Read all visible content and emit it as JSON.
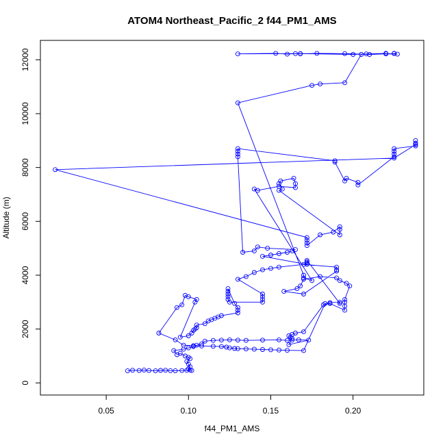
{
  "chart_data": {
    "type": "scatter",
    "title": "ATOM4 Northeast_Pacific_2 f44_PM1_AMS",
    "xlabel": "f44_PM1_AMS",
    "ylabel": "Altitude (m)",
    "xlim": [
      0.01,
      0.243
    ],
    "ylim": [
      -450,
      12720
    ],
    "x_ticks": [
      0.05,
      0.1,
      0.15,
      0.2
    ],
    "x_tick_labels": [
      "0.05",
      "0.10",
      "0.15",
      "0.20"
    ],
    "y_ticks": [
      0,
      2000,
      4000,
      6000,
      8000,
      10000,
      12000
    ],
    "y_tick_labels": [
      "0",
      "2000",
      "4000",
      "6000",
      "8000",
      "10000",
      "12000"
    ],
    "grid": false,
    "series": [
      {
        "mode": "lines+markers",
        "marker": "open-circle",
        "color": "#0000ff",
        "x": [
          0.063,
          0.066,
          0.07,
          0.073,
          0.076,
          0.08,
          0.083,
          0.086,
          0.089,
          0.092,
          0.096,
          0.099,
          0.101,
          0.102,
          0.1,
          0.101,
          0.1,
          0.099,
          0.101,
          0.1,
          0.098,
          0.095,
          0.093,
          0.091,
          0.097,
          0.1,
          0.103,
          0.105,
          0.108,
          0.11,
          0.115,
          0.12,
          0.125,
          0.13,
          0.135,
          0.145,
          0.155,
          0.16,
          0.163,
          0.167,
          0.173,
          0.161,
          0.163,
          0.162,
          0.161,
          0.163,
          0.165,
          0.17,
          0.182,
          0.186,
          0.195,
          0.195,
          0.195,
          0.195,
          0.198,
          0.196,
          0.192,
          0.19,
          0.18,
          0.17,
          0.168,
          0.166,
          0.158,
          0.17,
          0.19,
          0.19,
          0.19,
          0.17,
          0.155,
          0.15,
          0.145,
          0.14,
          0.135,
          0.13,
          0.145,
          0.145,
          0.145,
          0.145,
          0.125,
          0.124,
          0.124,
          0.124,
          0.124,
          0.124,
          0.128,
          0.13,
          0.13,
          0.13,
          0.12,
          0.118,
          0.116,
          0.114,
          0.112,
          0.11,
          0.105,
          0.105,
          0.104,
          0.103,
          0.102,
          0.1,
          0.095,
          0.104,
          0.105,
          0.1,
          0.098,
          0.096,
          0.093,
          0.082,
          0.092,
          0.097,
          0.103,
          0.108,
          0.115,
          0.12,
          0.123,
          0.125,
          0.128,
          0.13,
          0.135,
          0.14,
          0.145,
          0.15,
          0.155,
          0.16,
          0.17,
          0.183,
          0.186,
          0.192,
          0.192,
          0.172,
          0.172,
          0.172,
          0.172,
          0.145,
          0.15,
          0.155,
          0.16,
          0.163,
          0.165,
          0.148,
          0.142,
          0.14,
          0.133,
          0.13,
          0.13,
          0.13,
          0.13,
          0.189,
          0.189,
          0.195,
          0.196,
          0.203,
          0.203,
          0.225,
          0.225,
          0.225,
          0.225,
          0.238,
          0.238,
          0.238,
          0.238,
          0.225,
          0.019,
          0.172,
          0.172,
          0.172,
          0.172,
          0.18,
          0.188,
          0.192,
          0.192,
          0.192,
          0.155,
          0.157,
          0.155,
          0.156,
          0.164,
          0.165,
          0.165,
          0.155,
          0.142,
          0.14,
          0.175,
          0.17,
          0.17,
          0.13,
          0.175,
          0.18,
          0.195,
          0.205,
          0.208,
          0.225,
          0.225,
          0.227,
          0.22,
          0.21,
          0.195,
          0.178,
          0.168,
          0.165,
          0.16,
          0.153,
          0.13,
          0.168,
          0.2,
          0.22
        ],
        "y": [
          450,
          470,
          460,
          475,
          460,
          450,
          465,
          470,
          455,
          450,
          460,
          470,
          475,
          460,
          520,
          600,
          700,
          800,
          900,
          950,
          1000,
          1100,
          1050,
          1200,
          1250,
          1300,
          1350,
          1400,
          1450,
          1550,
          1580,
          1590,
          1600,
          1590,
          1580,
          1590,
          1600,
          1580,
          1590,
          1600,
          1590,
          1420,
          1650,
          1700,
          1750,
          1800,
          1850,
          1900,
          2900,
          2950,
          2700,
          2850,
          3000,
          3100,
          3600,
          3700,
          3800,
          3900,
          3950,
          3850,
          3600,
          3500,
          3400,
          3300,
          4150,
          4200,
          4300,
          4400,
          4300,
          4250,
          4200,
          4100,
          3950,
          3850,
          3300,
          3200,
          3100,
          3000,
          3000,
          3100,
          3200,
          3300,
          3400,
          3500,
          2950,
          2800,
          2700,
          2600,
          2500,
          2450,
          2400,
          2350,
          2300,
          2200,
          2150,
          2050,
          2000,
          1950,
          1850,
          1750,
          1700,
          3000,
          3100,
          3200,
          3250,
          2900,
          2800,
          1850,
          1600,
          1400,
          1380,
          1370,
          1360,
          1350,
          1330,
          1300,
          1280,
          1270,
          1260,
          1250,
          1240,
          1230,
          1220,
          1210,
          1200,
          2950,
          2980,
          3000,
          2950,
          4550,
          4500,
          4450,
          4400,
          4700,
          4750,
          4800,
          4850,
          4900,
          4950,
          5000,
          5050,
          4900,
          4850,
          8400,
          8500,
          8600,
          8700,
          8250,
          8200,
          7500,
          7600,
          7450,
          7350,
          8400,
          8500,
          8600,
          8700,
          8800,
          8900,
          9000,
          8850,
          8350,
          7920,
          5400,
          5300,
          5200,
          5100,
          5500,
          5600,
          5800,
          5700,
          5500,
          7150,
          7200,
          7400,
          7500,
          7600,
          7400,
          7250,
          7300,
          7150,
          7200,
          3800,
          3900,
          4000,
          10400,
          11050,
          11100,
          11150,
          12200,
          12220,
          12230,
          12240,
          12210,
          12220,
          12200,
          12230,
          12240,
          12220,
          12230,
          12210,
          12240,
          12220,
          12230,
          12200,
          12240
        ]
      }
    ]
  }
}
